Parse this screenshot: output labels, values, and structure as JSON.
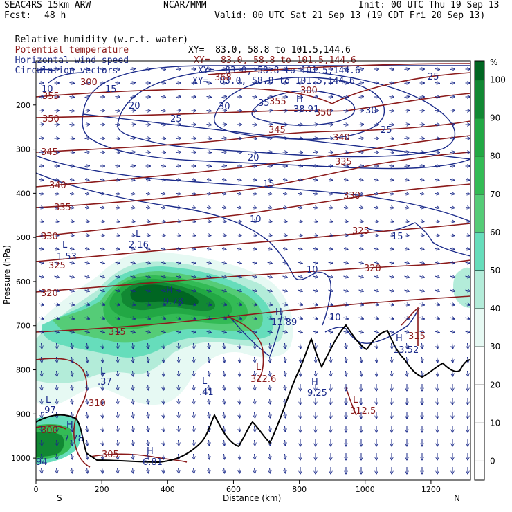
{
  "header": {
    "model": "SEAC4RS 15km ARW",
    "org": "NCAR/MMM",
    "init": "Init: 00 UTC Thu 19 Sep 13",
    "fcst_label": "Fcst:",
    "fcst_value": "48 h",
    "valid": "Valid: 00 UTC Sat 21 Sep 13 (19 CDT Fri 20 Sep 13)"
  },
  "legend": [
    {
      "name": "Relative humidity (w.r.t. water)",
      "xy": "XY=  83.0, 58.8 to 101.5,144.6",
      "color": "#000000"
    },
    {
      "name": "Potential temperature",
      "xy": "XY=  83.0, 58.8 to 101.5,144.6",
      "color": "#8b1a1a"
    },
    {
      "name": "Horizontal wind speed",
      "xy": "XY=  83.0, 58.8 to 101.5,144.6",
      "color": "#1a2a8a"
    },
    {
      "name": "Circulation vectors",
      "xy": "XY=  83.0, 58.8 to 101.5,144.6",
      "color": "#1a2a8a"
    }
  ],
  "colors": {
    "theta": "#8b1a1a",
    "wind": "#1a2a8a",
    "terrain": "#000000",
    "rh_30": "#e6f9f3",
    "rh_40": "#b3ecd9",
    "rh_50": "#66ddbb",
    "rh_60": "#55cc77",
    "rh_70": "#33bb55",
    "rh_80": "#22a844",
    "rh_90": "#118833",
    "rh_100": "#006622"
  },
  "chart_data": {
    "type": "heatmap",
    "title": "",
    "xlabel": "Distance (km)",
    "ylabel": "Pressure (hPa)",
    "xlim": [
      0,
      1320
    ],
    "ylim": [
      1050,
      100
    ],
    "x_ticks": [
      0,
      200,
      400,
      600,
      800,
      1000,
      1200
    ],
    "y_ticks": [
      200,
      300,
      400,
      500,
      600,
      700,
      800,
      900,
      1000
    ],
    "x_endpoints": {
      "left": "S",
      "right": "N"
    },
    "colorbar": {
      "unit": "%",
      "ticks": [
        0,
        10,
        20,
        30,
        40,
        50,
        60,
        70,
        80,
        90,
        100
      ]
    },
    "theta_contour_labels": [
      "300",
      "305",
      "310",
      "315",
      "320",
      "325",
      "330",
      "335",
      "340",
      "345",
      "350",
      "355",
      "360"
    ],
    "wind_contour_labels": [
      "10",
      "15",
      "20",
      "25",
      "30",
      "35"
    ],
    "extrema": [
      {
        "kind": "L",
        "value": "1.53"
      },
      {
        "kind": "L",
        "value": "2.16"
      },
      {
        "kind": "H",
        "value": "9.78"
      },
      {
        "kind": "H",
        "value": "11.89"
      },
      {
        "kind": "L",
        "value": ".37"
      },
      {
        "kind": "L",
        "value": ".41"
      },
      {
        "kind": "L",
        "value": ".97"
      },
      {
        "kind": "H",
        "value": "7.78"
      },
      {
        "kind": "H",
        "value": "6.81"
      },
      {
        "kind": "L",
        "value": "312.6"
      },
      {
        "kind": "H",
        "value": "9.25"
      },
      {
        "kind": "L",
        "value": "312.5"
      },
      {
        "kind": "H",
        "value": "13.52"
      },
      {
        "kind": "H",
        "value": "315"
      },
      {
        "kind": "H",
        "value": "38.91"
      },
      {
        "kind": "L",
        "value": "94"
      }
    ]
  }
}
